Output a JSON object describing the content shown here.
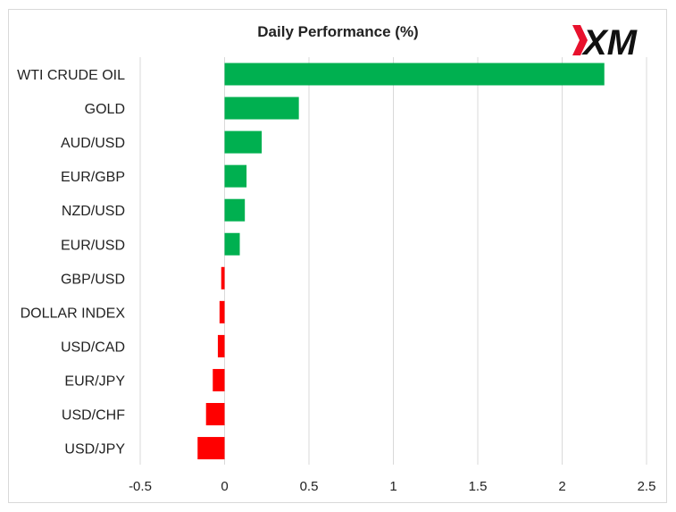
{
  "chart_data": {
    "type": "bar",
    "orientation": "horizontal",
    "title": "Daily Performance (%)",
    "brand": "XM",
    "categories": [
      "WTI CRUDE OIL",
      "GOLD",
      "AUD/USD",
      "EUR/GBP",
      "NZD/USD",
      "EUR/USD",
      "GBP/USD",
      "DOLLAR INDEX",
      "USD/CAD",
      "EUR/JPY",
      "USD/CHF",
      "USD/JPY"
    ],
    "values": [
      2.25,
      0.44,
      0.22,
      0.13,
      0.12,
      0.09,
      -0.02,
      -0.03,
      -0.04,
      -0.07,
      -0.11,
      -0.16
    ],
    "xticks": [
      "-0.5",
      "0",
      "0.5",
      "1",
      "1.5",
      "2",
      "2.5"
    ],
    "xlim": [
      -0.5,
      2.5
    ],
    "grid": "vertical",
    "legend": "none",
    "colors": {
      "positive": "#00b050",
      "negative": "#ff0000",
      "grid": "#d9d9d9",
      "logo_accent": "#e8112d"
    }
  }
}
